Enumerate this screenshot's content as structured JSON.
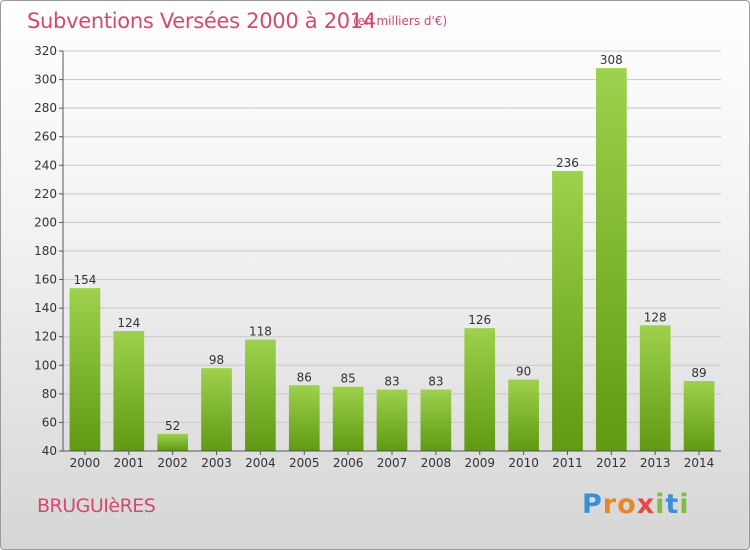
{
  "header": {
    "title": "Subventions Versées 2000 à 2014",
    "unit": "(en milliers d'€)"
  },
  "footer": {
    "commune": "BRUGUIèRES",
    "logo": "Proxiti"
  },
  "colors": {
    "accent": "#d24a6e",
    "bar_top": "#9ed14d",
    "bar_bottom": "#5f9a12"
  },
  "chart_data": {
    "type": "bar",
    "title": "Subventions Versées 2000 à 2014",
    "subtitle": "(en milliers d'€)",
    "xlabel": "",
    "ylabel": "",
    "categories": [
      "2000",
      "2001",
      "2002",
      "2003",
      "2004",
      "2005",
      "2006",
      "2007",
      "2008",
      "2009",
      "2010",
      "2011",
      "2012",
      "2013",
      "2014"
    ],
    "values": [
      154,
      124,
      52,
      98,
      118,
      86,
      85,
      83,
      83,
      126,
      90,
      236,
      308,
      128,
      89
    ],
    "ylim": [
      40,
      320
    ],
    "yticks": [
      40,
      60,
      80,
      100,
      120,
      140,
      160,
      180,
      200,
      220,
      240,
      260,
      280,
      300,
      320
    ],
    "grid": true,
    "legend": "none"
  }
}
